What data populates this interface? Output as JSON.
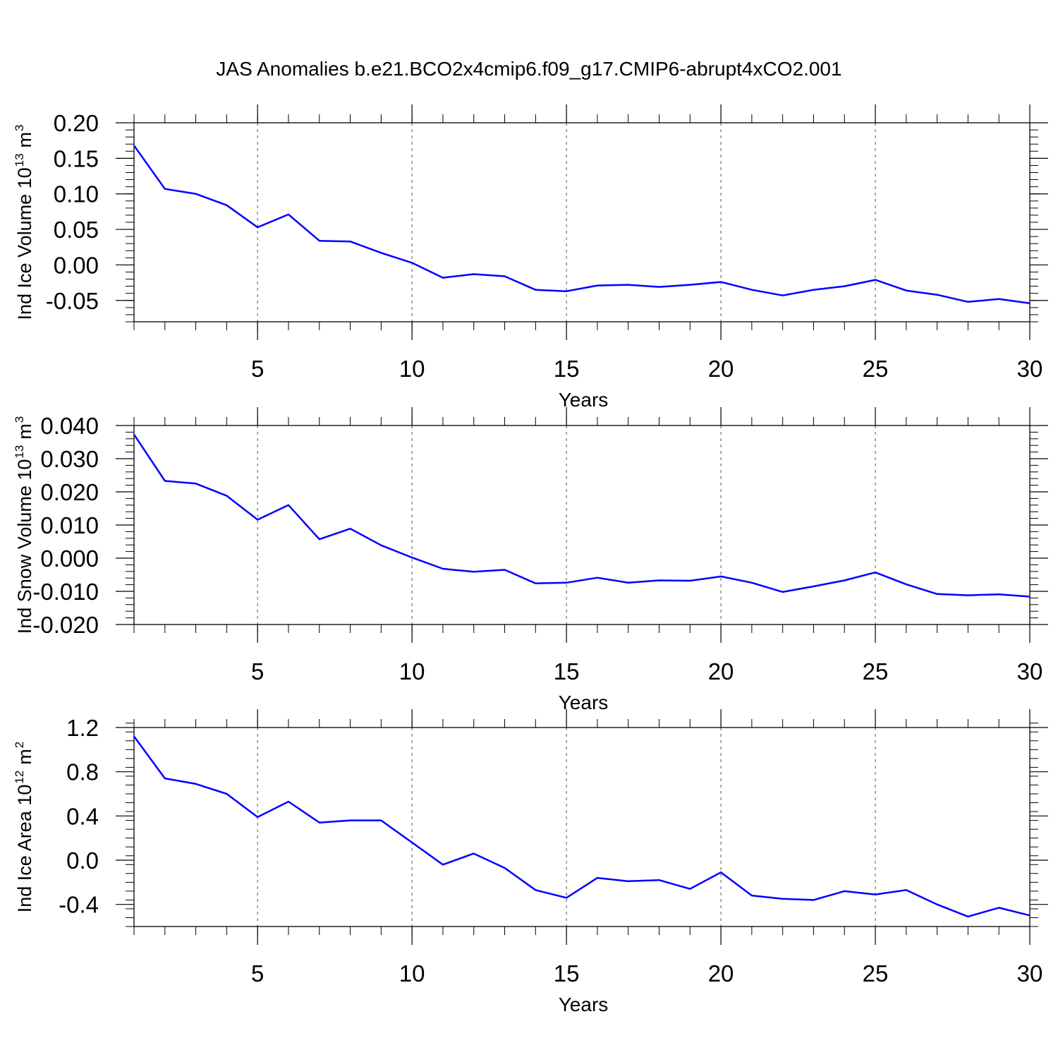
{
  "title": "JAS Anomalies b.e21.BCO2x4cmip6.f09_g17.CMIP6-abrupt4xCO2.001",
  "line_color": "#0000ff",
  "chart_data": [
    {
      "type": "line",
      "ylabel": "Ind Ice Volume 10",
      "ylabel_exponent": "13",
      "ylabel_unit": "m",
      "ylabel_unit_exponent": "3",
      "xlabel": "Years",
      "xlim": [
        1,
        30
      ],
      "ylim": [
        -0.08,
        0.2
      ],
      "xticks": [
        5,
        10,
        15,
        20,
        25,
        30
      ],
      "xtick_labels": [
        "5",
        "10",
        "15",
        "20",
        "25",
        "30"
      ],
      "yticks": [
        0.2,
        0.15,
        0.1,
        0.05,
        0.0,
        -0.05
      ],
      "ytick_labels": [
        "0.20",
        "0.15",
        "0.10",
        "0.05",
        "0.00",
        "-0.05"
      ],
      "grid": "dashed vertical at major x ticks",
      "x": [
        1,
        2,
        3,
        4,
        5,
        6,
        7,
        8,
        9,
        10,
        11,
        12,
        13,
        14,
        15,
        16,
        17,
        18,
        19,
        20,
        21,
        22,
        23,
        24,
        25,
        26,
        27,
        28,
        29,
        30
      ],
      "values": [
        0.168,
        0.107,
        0.1,
        0.084,
        0.053,
        0.071,
        0.034,
        0.033,
        0.017,
        0.003,
        -0.018,
        -0.013,
        -0.016,
        -0.035,
        -0.037,
        -0.029,
        -0.028,
        -0.031,
        -0.028,
        -0.024,
        -0.035,
        -0.043,
        -0.035,
        -0.03,
        -0.021,
        -0.036,
        -0.042,
        -0.052,
        -0.048,
        -0.054
      ]
    },
    {
      "type": "line",
      "ylabel": "Ind Snow Volume 10",
      "ylabel_exponent": "13",
      "ylabel_unit": "m",
      "ylabel_unit_exponent": "3",
      "xlabel": "Years",
      "xlim": [
        1,
        30
      ],
      "ylim": [
        -0.02,
        0.04
      ],
      "xticks": [
        5,
        10,
        15,
        20,
        25,
        30
      ],
      "xtick_labels": [
        "5",
        "10",
        "15",
        "20",
        "25",
        "30"
      ],
      "yticks": [
        0.04,
        0.03,
        0.02,
        0.01,
        0.0,
        -0.01,
        -0.02
      ],
      "ytick_labels": [
        "0.040",
        "0.030",
        "0.020",
        "0.010",
        "0.000",
        "-0.010",
        "-0.020"
      ],
      "grid": "dashed vertical at major x ticks",
      "x": [
        1,
        2,
        3,
        4,
        5,
        6,
        7,
        8,
        9,
        10,
        11,
        12,
        13,
        14,
        15,
        16,
        17,
        18,
        19,
        20,
        21,
        22,
        23,
        24,
        25,
        26,
        27,
        28,
        29,
        30
      ],
      "values": [
        0.0373,
        0.0233,
        0.0225,
        0.0188,
        0.0116,
        0.016,
        0.0057,
        0.0089,
        0.0039,
        0.0002,
        -0.0032,
        -0.0041,
        -0.0035,
        -0.0076,
        -0.0074,
        -0.0059,
        -0.0074,
        -0.0067,
        -0.0068,
        -0.0055,
        -0.0074,
        -0.0102,
        -0.0085,
        -0.0067,
        -0.0043,
        -0.0079,
        -0.0108,
        -0.0112,
        -0.0109,
        -0.0116
      ]
    },
    {
      "type": "line",
      "ylabel": "Ind Ice Area 10",
      "ylabel_exponent": "12",
      "ylabel_unit": "m",
      "ylabel_unit_exponent": "2",
      "xlabel": "Years",
      "xlim": [
        1,
        30
      ],
      "ylim": [
        -0.6,
        1.2
      ],
      "xticks": [
        5,
        10,
        15,
        20,
        25,
        30
      ],
      "xtick_labels": [
        "5",
        "10",
        "15",
        "20",
        "25",
        "30"
      ],
      "yticks": [
        1.2,
        0.8,
        0.4,
        0.0,
        -0.4
      ],
      "ytick_labels": [
        "1.2",
        "0.8",
        "0.4",
        "0.0",
        "-0.4"
      ],
      "grid": "dashed vertical at major x ticks",
      "x": [
        1,
        2,
        3,
        4,
        5,
        6,
        7,
        8,
        9,
        10,
        11,
        12,
        13,
        14,
        15,
        16,
        17,
        18,
        19,
        20,
        21,
        22,
        23,
        24,
        25,
        26,
        27,
        28,
        29,
        30
      ],
      "values": [
        1.12,
        0.74,
        0.69,
        0.6,
        0.39,
        0.53,
        0.34,
        0.36,
        0.36,
        0.16,
        -0.04,
        0.06,
        -0.07,
        -0.27,
        -0.34,
        -0.16,
        -0.19,
        -0.18,
        -0.26,
        -0.11,
        -0.32,
        -0.35,
        -0.36,
        -0.28,
        -0.31,
        -0.27,
        -0.4,
        -0.51,
        -0.43,
        -0.5
      ]
    }
  ]
}
